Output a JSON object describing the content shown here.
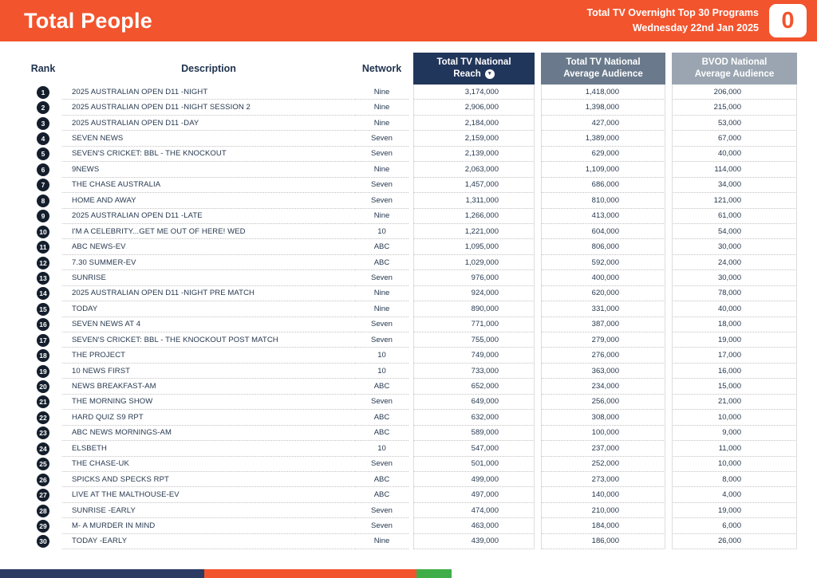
{
  "header": {
    "title": "Total People",
    "report_name": "Total TV Overnight Top 30 Programs",
    "report_date": "Wednesday 22nd Jan 2025",
    "logo_text": "0"
  },
  "table": {
    "columns": {
      "rank": "Rank",
      "description": "Description",
      "network": "Network",
      "reach_line1": "Total TV National",
      "reach_line2": "Reach",
      "avg_line1": "Total TV National",
      "avg_line2": "Average Audience",
      "bvod_line1": "BVOD National",
      "bvod_line2": "Average Audience"
    },
    "sort_icon": "▼",
    "rows": [
      {
        "rank": "1",
        "description": "2025 AUSTRALIAN OPEN D11 -NIGHT",
        "network": "Nine",
        "reach": "3,174,000",
        "avg": "1,418,000",
        "bvod": "206,000"
      },
      {
        "rank": "2",
        "description": "2025 AUSTRALIAN OPEN D11 -NIGHT SESSION 2",
        "network": "Nine",
        "reach": "2,906,000",
        "avg": "1,398,000",
        "bvod": "215,000"
      },
      {
        "rank": "3",
        "description": "2025 AUSTRALIAN OPEN D11 -DAY",
        "network": "Nine",
        "reach": "2,184,000",
        "avg": "427,000",
        "bvod": "53,000"
      },
      {
        "rank": "4",
        "description": "SEVEN NEWS",
        "network": "Seven",
        "reach": "2,159,000",
        "avg": "1,389,000",
        "bvod": "67,000"
      },
      {
        "rank": "5",
        "description": "SEVEN'S CRICKET: BBL - THE KNOCKOUT",
        "network": "Seven",
        "reach": "2,139,000",
        "avg": "629,000",
        "bvod": "40,000"
      },
      {
        "rank": "6",
        "description": "9NEWS",
        "network": "Nine",
        "reach": "2,063,000",
        "avg": "1,109,000",
        "bvod": "114,000"
      },
      {
        "rank": "7",
        "description": "THE CHASE AUSTRALIA",
        "network": "Seven",
        "reach": "1,457,000",
        "avg": "686,000",
        "bvod": "34,000"
      },
      {
        "rank": "8",
        "description": "HOME AND AWAY",
        "network": "Seven",
        "reach": "1,311,000",
        "avg": "810,000",
        "bvod": "121,000"
      },
      {
        "rank": "9",
        "description": "2025 AUSTRALIAN OPEN D11 -LATE",
        "network": "Nine",
        "reach": "1,266,000",
        "avg": "413,000",
        "bvod": "61,000"
      },
      {
        "rank": "10",
        "description": "I'M A CELEBRITY...GET ME OUT OF HERE! WED",
        "network": "10",
        "reach": "1,221,000",
        "avg": "604,000",
        "bvod": "54,000"
      },
      {
        "rank": "11",
        "description": "ABC NEWS-EV",
        "network": "ABC",
        "reach": "1,095,000",
        "avg": "806,000",
        "bvod": "30,000"
      },
      {
        "rank": "12",
        "description": "7.30 SUMMER-EV",
        "network": "ABC",
        "reach": "1,029,000",
        "avg": "592,000",
        "bvod": "24,000"
      },
      {
        "rank": "13",
        "description": "SUNRISE",
        "network": "Seven",
        "reach": "976,000",
        "avg": "400,000",
        "bvod": "30,000"
      },
      {
        "rank": "14",
        "description": "2025 AUSTRALIAN OPEN D11 -NIGHT PRE MATCH",
        "network": "Nine",
        "reach": "924,000",
        "avg": "620,000",
        "bvod": "78,000"
      },
      {
        "rank": "15",
        "description": "TODAY",
        "network": "Nine",
        "reach": "890,000",
        "avg": "331,000",
        "bvod": "40,000"
      },
      {
        "rank": "16",
        "description": "SEVEN NEWS AT 4",
        "network": "Seven",
        "reach": "771,000",
        "avg": "387,000",
        "bvod": "18,000"
      },
      {
        "rank": "17",
        "description": "SEVEN'S CRICKET: BBL - THE KNOCKOUT POST MATCH",
        "network": "Seven",
        "reach": "755,000",
        "avg": "279,000",
        "bvod": "19,000"
      },
      {
        "rank": "18",
        "description": "THE PROJECT",
        "network": "10",
        "reach": "749,000",
        "avg": "276,000",
        "bvod": "17,000"
      },
      {
        "rank": "19",
        "description": "10 NEWS FIRST",
        "network": "10",
        "reach": "733,000",
        "avg": "363,000",
        "bvod": "16,000"
      },
      {
        "rank": "20",
        "description": "NEWS BREAKFAST-AM",
        "network": "ABC",
        "reach": "652,000",
        "avg": "234,000",
        "bvod": "15,000"
      },
      {
        "rank": "21",
        "description": "THE MORNING SHOW",
        "network": "Seven",
        "reach": "649,000",
        "avg": "256,000",
        "bvod": "21,000"
      },
      {
        "rank": "22",
        "description": "HARD QUIZ S9 RPT",
        "network": "ABC",
        "reach": "632,000",
        "avg": "308,000",
        "bvod": "10,000"
      },
      {
        "rank": "23",
        "description": "ABC NEWS MORNINGS-AM",
        "network": "ABC",
        "reach": "589,000",
        "avg": "100,000",
        "bvod": "9,000"
      },
      {
        "rank": "24",
        "description": "ELSBETH",
        "network": "10",
        "reach": "547,000",
        "avg": "237,000",
        "bvod": "11,000"
      },
      {
        "rank": "25",
        "description": "THE CHASE-UK",
        "network": "Seven",
        "reach": "501,000",
        "avg": "252,000",
        "bvod": "10,000"
      },
      {
        "rank": "26",
        "description": "SPICKS AND SPECKS RPT",
        "network": "ABC",
        "reach": "499,000",
        "avg": "273,000",
        "bvod": "8,000"
      },
      {
        "rank": "27",
        "description": "LIVE AT THE MALTHOUSE-EV",
        "network": "ABC",
        "reach": "497,000",
        "avg": "140,000",
        "bvod": "4,000"
      },
      {
        "rank": "28",
        "description": "SUNRISE -EARLY",
        "network": "Seven",
        "reach": "474,000",
        "avg": "210,000",
        "bvod": "19,000"
      },
      {
        "rank": "29",
        "description": "M- A MURDER IN MIND",
        "network": "Seven",
        "reach": "463,000",
        "avg": "184,000",
        "bvod": "6,000"
      },
      {
        "rank": "30",
        "description": "TODAY -EARLY",
        "network": "Nine",
        "reach": "439,000",
        "avg": "186,000",
        "bvod": "26,000"
      }
    ]
  },
  "colors": {
    "brand_orange": "#F2542D",
    "navy": "#21365B",
    "slate": "#6A7A8C",
    "light_slate": "#9AA5B1",
    "footer_navy": "#2C3A64",
    "footer_green": "#3FAE49"
  }
}
